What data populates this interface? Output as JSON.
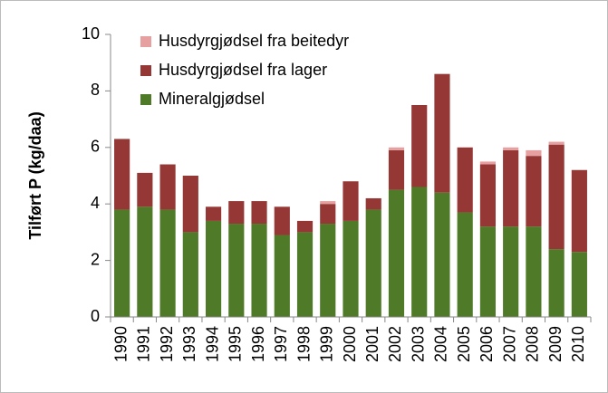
{
  "chart_data": {
    "type": "bar",
    "stacked": true,
    "y_label": "Tilført P (kg/daa)",
    "categories": [
      "1990",
      "1991",
      "1992",
      "1993",
      "1994",
      "1995",
      "1996",
      "1997",
      "1998",
      "1999",
      "2000",
      "2001",
      "2002",
      "2003",
      "2004",
      "2005",
      "2006",
      "2007",
      "2008",
      "2009",
      "2010"
    ],
    "series": [
      {
        "name": "Mineralgjødsel",
        "color": "#4f7a28",
        "values": [
          3.8,
          3.9,
          3.8,
          3.0,
          3.4,
          3.3,
          3.3,
          2.9,
          3.0,
          3.3,
          3.4,
          3.8,
          4.5,
          4.6,
          4.4,
          3.7,
          3.2,
          3.2,
          3.2,
          2.4,
          2.3
        ]
      },
      {
        "name": "Husdyrgjødsel fra lager",
        "color": "#953735",
        "values": [
          2.5,
          1.2,
          1.6,
          2.0,
          0.5,
          0.8,
          0.8,
          1.0,
          0.4,
          0.7,
          1.4,
          0.4,
          1.4,
          2.9,
          4.2,
          2.3,
          2.2,
          2.7,
          2.5,
          3.7,
          2.9
        ]
      },
      {
        "name": "Husdyrgjødsel fra beitedyr",
        "color": "#e6a0a0",
        "values": [
          0,
          0,
          0,
          0,
          0,
          0,
          0,
          0,
          0,
          0.1,
          0,
          0,
          0.1,
          0,
          0,
          0,
          0.1,
          0.1,
          0.2,
          0.1,
          0
        ]
      }
    ],
    "ylim": [
      0,
      10
    ],
    "yticks": [
      0,
      2,
      4,
      6,
      8,
      10
    ],
    "legend": "upper left"
  }
}
